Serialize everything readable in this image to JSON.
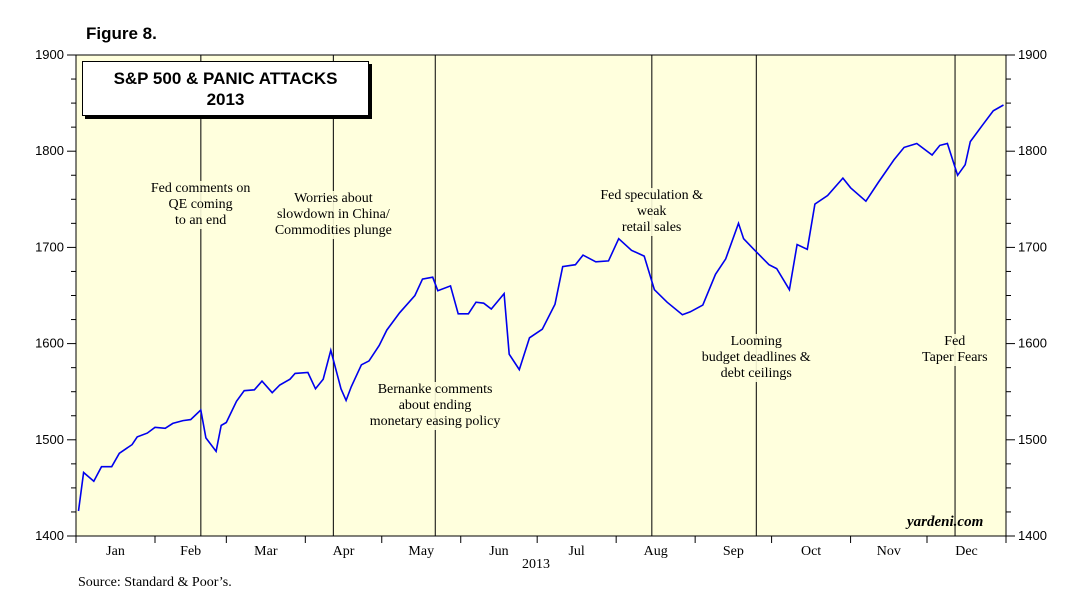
{
  "figure_label": "Figure 8.",
  "title_line1": "S&P 500 & PANIC ATTACKS",
  "title_line2": "2013",
  "source": "Source: Standard & Poor’s.",
  "brand": "yardeni.com",
  "x_axis_year": "2013",
  "colors": {
    "plot_bg": "#ffffdd",
    "line": "#0000ee",
    "axis": "#000000"
  },
  "chart_data": {
    "type": "line",
    "title": "S&P 500 & PANIC ATTACKS 2013",
    "xlabel": "2013",
    "ylabel": "",
    "ylim": [
      1400,
      1900
    ],
    "yticks": [
      1400,
      1500,
      1600,
      1700,
      1800,
      1900
    ],
    "month_labels": [
      "Jan",
      "Feb",
      "Mar",
      "Apr",
      "May",
      "Jun",
      "Jul",
      "Aug",
      "Sep",
      "Oct",
      "Nov",
      "Dec"
    ],
    "grid": false,
    "series": [
      {
        "x": [
          "2013-01-02",
          "2013-01-04",
          "2013-01-08",
          "2013-01-11",
          "2013-01-15",
          "2013-01-18",
          "2013-01-23",
          "2013-01-25",
          "2013-01-29",
          "2013-02-01",
          "2013-02-05",
          "2013-02-08",
          "2013-02-12",
          "2013-02-15",
          "2013-02-19",
          "2013-02-21",
          "2013-02-25",
          "2013-02-27",
          "2013-03-01",
          "2013-03-05",
          "2013-03-08",
          "2013-03-12",
          "2013-03-15",
          "2013-03-19",
          "2013-03-22",
          "2013-03-26",
          "2013-03-28",
          "2013-04-02",
          "2013-04-05",
          "2013-04-08",
          "2013-04-11",
          "2013-04-15",
          "2013-04-17",
          "2013-04-19",
          "2013-04-23",
          "2013-04-26",
          "2013-04-30",
          "2013-05-03",
          "2013-05-08",
          "2013-05-14",
          "2013-05-17",
          "2013-05-21",
          "2013-05-23",
          "2013-05-28",
          "2013-05-31",
          "2013-06-04",
          "2013-06-07",
          "2013-06-10",
          "2013-06-13",
          "2013-06-18",
          "2013-06-20",
          "2013-06-24",
          "2013-06-28",
          "2013-07-03",
          "2013-07-08",
          "2013-07-11",
          "2013-07-16",
          "2013-07-19",
          "2013-07-24",
          "2013-07-29",
          "2013-08-02",
          "2013-08-07",
          "2013-08-12",
          "2013-08-16",
          "2013-08-21",
          "2013-08-27",
          "2013-08-30",
          "2013-09-04",
          "2013-09-09",
          "2013-09-13",
          "2013-09-18",
          "2013-09-20",
          "2013-09-24",
          "2013-09-30",
          "2013-10-03",
          "2013-10-08",
          "2013-10-11",
          "2013-10-15",
          "2013-10-18",
          "2013-10-23",
          "2013-10-29",
          "2013-11-01",
          "2013-11-07",
          "2013-11-12",
          "2013-11-18",
          "2013-11-22",
          "2013-11-27",
          "2013-12-03",
          "2013-12-06",
          "2013-12-09",
          "2013-12-13",
          "2013-12-16",
          "2013-12-18",
          "2013-12-23",
          "2013-12-27",
          "2013-12-31"
        ],
        "y": [
          1426,
          1466,
          1457,
          1472,
          1472,
          1486,
          1495,
          1503,
          1507,
          1513,
          1512,
          1517,
          1520,
          1521,
          1531,
          1502,
          1488,
          1515,
          1518,
          1540,
          1551,
          1552,
          1561,
          1549,
          1557,
          1563,
          1569,
          1570,
          1553,
          1563,
          1593,
          1553,
          1541,
          1555,
          1578,
          1582,
          1598,
          1614,
          1632,
          1650,
          1667,
          1669,
          1655,
          1660,
          1631,
          1631,
          1643,
          1642,
          1636,
          1652,
          1589,
          1573,
          1606,
          1615,
          1641,
          1680,
          1682,
          1692,
          1685,
          1686,
          1709,
          1697,
          1691,
          1656,
          1643,
          1630,
          1633,
          1640,
          1672,
          1688,
          1725,
          1709,
          1698,
          1682,
          1678,
          1656,
          1703,
          1698,
          1745,
          1754,
          1772,
          1762,
          1748,
          1768,
          1791,
          1804,
          1808,
          1796,
          1806,
          1808,
          1775,
          1786,
          1810,
          1828,
          1842,
          1848
        ]
      }
    ],
    "annotations": [
      {
        "date": "2013-02-19",
        "label": [
          "Fed comments on",
          "QE coming",
          "to an end"
        ]
      },
      {
        "date": "2013-04-12",
        "label": [
          "Worries about",
          "slowdown in China/",
          "Commodities plunge"
        ]
      },
      {
        "date": "2013-05-22",
        "label": [
          "Bernanke comments",
          "about ending",
          "monetary easing policy"
        ]
      },
      {
        "date": "2013-08-15",
        "label": [
          "Fed speculation &",
          "weak",
          "retail sales"
        ]
      },
      {
        "date": "2013-09-25",
        "label": [
          "Looming",
          "budget deadlines &",
          "debt ceilings"
        ]
      },
      {
        "date": "2013-12-12",
        "label": [
          "Fed",
          "Taper Fears"
        ]
      }
    ]
  }
}
